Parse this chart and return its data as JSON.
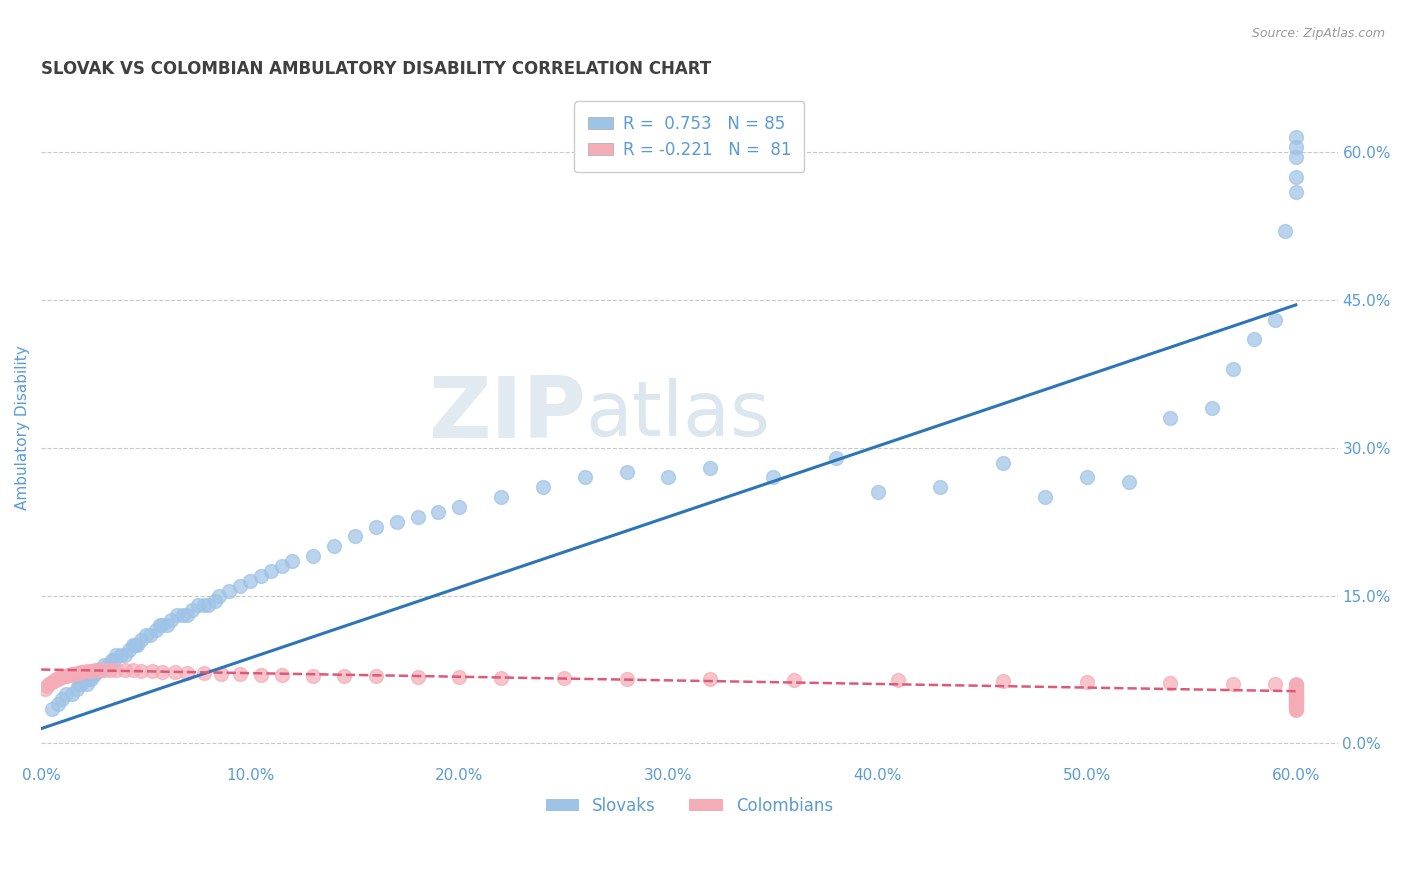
{
  "title": "SLOVAK VS COLOMBIAN AMBULATORY DISABILITY CORRELATION CHART",
  "source": "Source: ZipAtlas.com",
  "ylabel": "Ambulatory Disability",
  "xlim": [
    0.0,
    0.62
  ],
  "ylim": [
    -0.02,
    0.66
  ],
  "xticks": [
    0.0,
    0.1,
    0.2,
    0.3,
    0.4,
    0.5,
    0.6
  ],
  "xticklabels": [
    "0.0%",
    "10.0%",
    "20.0%",
    "30.0%",
    "40.0%",
    "50.0%",
    "60.0%"
  ],
  "yticks_right": [
    0.0,
    0.15,
    0.3,
    0.45,
    0.6
  ],
  "yticks_right_labels": [
    "0.0%",
    "15.0%",
    "30.0%",
    "45.0%",
    "60.0%"
  ],
  "grid_color": "#c8c8c8",
  "background_color": "#ffffff",
  "title_color": "#404040",
  "axis_label_color": "#5b9bd5",
  "tick_color": "#5b9bd5",
  "legend_r1": "R =  0.753",
  "legend_n1": "N = 85",
  "legend_r2": "R = -0.221",
  "legend_n2": "N =  81",
  "legend_label1": "Slovaks",
  "legend_label2": "Colombians",
  "slovak_color": "#9dc3e6",
  "colombian_color": "#f4acb7",
  "slovak_line_color": "#2e75b6",
  "colombian_line_color": "#e05878",
  "slovak_scatter_x": [
    0.005,
    0.008,
    0.01,
    0.012,
    0.015,
    0.017,
    0.018,
    0.019,
    0.02,
    0.022,
    0.023,
    0.024,
    0.025,
    0.026,
    0.027,
    0.028,
    0.03,
    0.032,
    0.033,
    0.034,
    0.035,
    0.036,
    0.038,
    0.04,
    0.042,
    0.044,
    0.045,
    0.046,
    0.048,
    0.05,
    0.052,
    0.055,
    0.057,
    0.058,
    0.06,
    0.062,
    0.065,
    0.068,
    0.07,
    0.072,
    0.075,
    0.078,
    0.08,
    0.083,
    0.085,
    0.09,
    0.095,
    0.1,
    0.105,
    0.11,
    0.115,
    0.12,
    0.13,
    0.14,
    0.15,
    0.16,
    0.17,
    0.18,
    0.19,
    0.2,
    0.22,
    0.24,
    0.26,
    0.28,
    0.3,
    0.32,
    0.35,
    0.38,
    0.4,
    0.43,
    0.46,
    0.48,
    0.5,
    0.52,
    0.54,
    0.56,
    0.57,
    0.58,
    0.59,
    0.595,
    0.6,
    0.6,
    0.6,
    0.6,
    0.6
  ],
  "slovak_scatter_y": [
    0.035,
    0.04,
    0.045,
    0.05,
    0.05,
    0.055,
    0.06,
    0.06,
    0.065,
    0.06,
    0.065,
    0.065,
    0.07,
    0.07,
    0.075,
    0.075,
    0.08,
    0.08,
    0.08,
    0.085,
    0.085,
    0.09,
    0.09,
    0.09,
    0.095,
    0.1,
    0.1,
    0.1,
    0.105,
    0.11,
    0.11,
    0.115,
    0.12,
    0.12,
    0.12,
    0.125,
    0.13,
    0.13,
    0.13,
    0.135,
    0.14,
    0.14,
    0.14,
    0.145,
    0.15,
    0.155,
    0.16,
    0.165,
    0.17,
    0.175,
    0.18,
    0.185,
    0.19,
    0.2,
    0.21,
    0.22,
    0.225,
    0.23,
    0.235,
    0.24,
    0.25,
    0.26,
    0.27,
    0.275,
    0.27,
    0.28,
    0.27,
    0.29,
    0.255,
    0.26,
    0.285,
    0.25,
    0.27,
    0.265,
    0.33,
    0.34,
    0.38,
    0.41,
    0.43,
    0.52,
    0.56,
    0.575,
    0.595,
    0.605,
    0.615
  ],
  "colombian_scatter_x": [
    0.002,
    0.003,
    0.004,
    0.005,
    0.006,
    0.007,
    0.008,
    0.009,
    0.01,
    0.011,
    0.012,
    0.013,
    0.014,
    0.015,
    0.016,
    0.017,
    0.018,
    0.019,
    0.02,
    0.022,
    0.024,
    0.026,
    0.028,
    0.03,
    0.033,
    0.036,
    0.04,
    0.044,
    0.048,
    0.053,
    0.058,
    0.064,
    0.07,
    0.078,
    0.086,
    0.095,
    0.105,
    0.115,
    0.13,
    0.145,
    0.16,
    0.18,
    0.2,
    0.22,
    0.25,
    0.28,
    0.32,
    0.36,
    0.41,
    0.46,
    0.5,
    0.54,
    0.57,
    0.59,
    0.6,
    0.6,
    0.6,
    0.6,
    0.6,
    0.6,
    0.6,
    0.6,
    0.6,
    0.6,
    0.6,
    0.6,
    0.6,
    0.6,
    0.6,
    0.6,
    0.6,
    0.6,
    0.6,
    0.6,
    0.6,
    0.6,
    0.6,
    0.6,
    0.6,
    0.6,
    0.6
  ],
  "colombian_scatter_y": [
    0.055,
    0.058,
    0.06,
    0.062,
    0.063,
    0.065,
    0.065,
    0.067,
    0.067,
    0.068,
    0.068,
    0.069,
    0.069,
    0.07,
    0.07,
    0.071,
    0.071,
    0.072,
    0.072,
    0.073,
    0.073,
    0.074,
    0.074,
    0.075,
    0.075,
    0.075,
    0.074,
    0.074,
    0.073,
    0.073,
    0.072,
    0.072,
    0.071,
    0.071,
    0.07,
    0.07,
    0.069,
    0.069,
    0.068,
    0.068,
    0.068,
    0.067,
    0.067,
    0.066,
    0.066,
    0.065,
    0.065,
    0.064,
    0.064,
    0.063,
    0.062,
    0.061,
    0.06,
    0.06,
    0.06,
    0.059,
    0.057,
    0.056,
    0.055,
    0.055,
    0.054,
    0.052,
    0.051,
    0.05,
    0.049,
    0.048,
    0.047,
    0.046,
    0.046,
    0.045,
    0.044,
    0.043,
    0.042,
    0.041,
    0.04,
    0.039,
    0.038,
    0.037,
    0.036,
    0.035,
    0.034
  ],
  "slovak_line_x": [
    0.0,
    0.6
  ],
  "slovak_line_y": [
    0.015,
    0.445
  ],
  "colombian_line_x": [
    0.0,
    0.6
  ],
  "colombian_line_y": [
    0.075,
    0.053
  ]
}
